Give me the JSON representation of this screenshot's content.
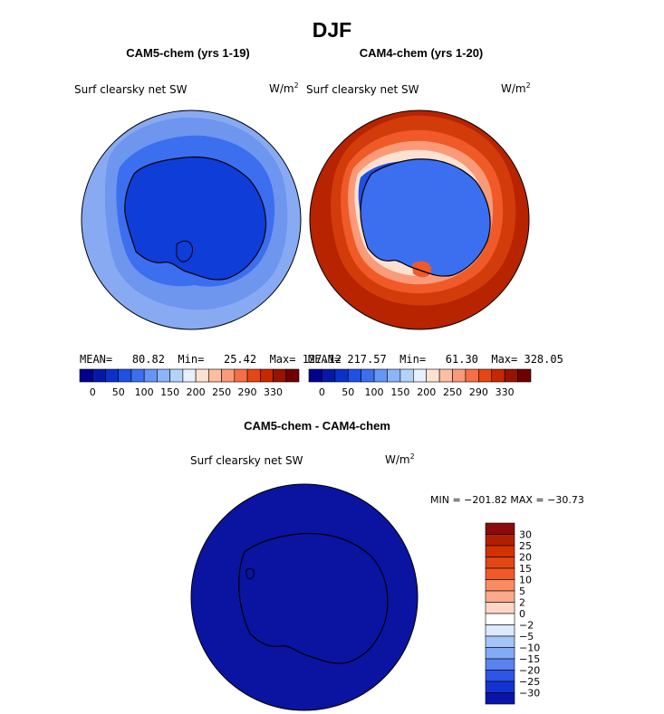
{
  "chart_data": [
    {
      "type": "heatmap",
      "title": "CAM5-chem (yrs 1-19)",
      "variable": "Surf clearsky net SW",
      "units": "W/m",
      "units_exp": "2",
      "mean_label": "MEAN=",
      "mean": "80.82",
      "min_label": "Min=",
      "min": "25.42",
      "max_label": "Max=",
      "max": "127.12",
      "colorbar_ticks": [
        "0",
        "50",
        "100",
        "150",
        "200",
        "250",
        "290",
        "330"
      ]
    },
    {
      "type": "heatmap",
      "title": "CAM4-chem (yrs 1-20)",
      "variable": "Surf clearsky net SW",
      "units": "W/m",
      "units_exp": "2",
      "mean_label": "MEAN=",
      "mean": "217.57",
      "min_label": "Min=",
      "min": "61.30",
      "max_label": "Max=",
      "max": "328.05",
      "colorbar_ticks": [
        "0",
        "50",
        "100",
        "150",
        "200",
        "250",
        "290",
        "330"
      ]
    },
    {
      "type": "heatmap",
      "title": "CAM5-chem - CAM4-chem",
      "variable": "Surf clearsky net SW",
      "units": "W/m",
      "units_exp": "2",
      "minmax_text": "MIN = −201.82 MAX = −30.73",
      "colorbar_ticks": [
        "30",
        "25",
        "20",
        "15",
        "10",
        "5",
        "2",
        "0",
        "−2",
        "−5",
        "−10",
        "−15",
        "−20",
        "−25",
        "−30"
      ]
    }
  ],
  "page": {
    "title": "DJF"
  },
  "colors": {
    "scale": [
      "#00008c",
      "#0519a8",
      "#0a32c8",
      "#1e50e6",
      "#3c6ef0",
      "#6496f5",
      "#8cb4f8",
      "#b4d2fa",
      "#e6f0ff",
      "#ffe1d2",
      "#fcbea0",
      "#fa9a78",
      "#f56e46",
      "#e64614",
      "#c82800",
      "#961400",
      "#6e0000"
    ],
    "diff_scale": [
      "#8b0a0a",
      "#b41e00",
      "#d23200",
      "#e14614",
      "#f05a28",
      "#fa8c64",
      "#fcaa8c",
      "#ffd7c8",
      "#ffffff",
      "#dde9ff",
      "#a4c4fa",
      "#82aaf5",
      "#5a82ee",
      "#2d55e6",
      "#1432d2",
      "#0a14aa"
    ],
    "cam5_ocean_far": "#88aaf2",
    "cam5_ocean_near": "#6e96ef",
    "cam5_ocean_inner": "#3c6ef0",
    "cam5_land": "#0f3dd8",
    "cam4_ocean": "#b82300",
    "diff_fill": "#0a14a0"
  }
}
